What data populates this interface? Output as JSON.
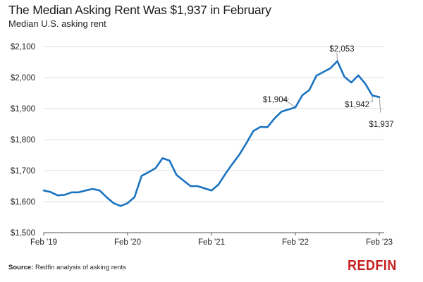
{
  "header": {
    "title": "The Median Asking Rent Was $1,937 in February",
    "subtitle": "Median U.S. asking rent"
  },
  "footer": {
    "source_label": "Source:",
    "source_text": "Redfin analysis of asking rents",
    "logo": "REDFIN"
  },
  "colors": {
    "line": "#1a73c1",
    "grid": "#dddddd",
    "axis": "#555555",
    "leader": "#999999",
    "logo": "#c82021"
  },
  "chart_data": {
    "type": "line",
    "title": "The Median Asking Rent Was $1,937 in February",
    "subtitle": "Median U.S. asking rent",
    "xlabel": "",
    "ylabel": "",
    "ylim": [
      1500,
      2100
    ],
    "yticks": [
      1500,
      1600,
      1700,
      1800,
      1900,
      2000,
      2100
    ],
    "ytick_labels": [
      "$1,500",
      "$1,600",
      "$1,700",
      "$1,800",
      "$1,900",
      "$2,000",
      "$2,100"
    ],
    "xtick_labels": [
      "Feb '19",
      "Feb '20",
      "Feb '21",
      "Feb '22",
      "Feb '23"
    ],
    "grid": true,
    "legend": null,
    "source": "Redfin analysis of asking rents",
    "series": [
      {
        "name": "Median U.S. asking rent",
        "x": [
          "2019-02",
          "2019-03",
          "2019-04",
          "2019-05",
          "2019-06",
          "2019-07",
          "2019-08",
          "2019-09",
          "2019-10",
          "2019-11",
          "2019-12",
          "2020-01",
          "2020-02",
          "2020-03",
          "2020-04",
          "2020-05",
          "2020-06",
          "2020-07",
          "2020-08",
          "2020-09",
          "2020-10",
          "2020-11",
          "2020-12",
          "2021-01",
          "2021-02",
          "2021-03",
          "2021-04",
          "2021-05",
          "2021-06",
          "2021-07",
          "2021-08",
          "2021-09",
          "2021-10",
          "2021-11",
          "2021-12",
          "2022-01",
          "2022-02",
          "2022-03",
          "2022-04",
          "2022-05",
          "2022-06",
          "2022-07",
          "2022-08",
          "2022-09",
          "2022-10",
          "2022-11",
          "2022-12",
          "2023-01",
          "2023-02"
        ],
        "values": [
          1636,
          1631,
          1620,
          1622,
          1630,
          1630,
          1636,
          1641,
          1636,
          1614,
          1595,
          1586,
          1595,
          1615,
          1683,
          1695,
          1708,
          1740,
          1732,
          1686,
          1668,
          1650,
          1650,
          1643,
          1636,
          1655,
          1690,
          1722,
          1752,
          1789,
          1828,
          1841,
          1840,
          1868,
          1890,
          1897,
          1904,
          1943,
          1960,
          2006,
          2018,
          2030,
          2053,
          2003,
          1984,
          2007,
          1980,
          1942,
          1937
        ]
      }
    ],
    "annotations": [
      {
        "label": "$1,904",
        "x": "2022-02",
        "value": 1904
      },
      {
        "label": "$2,053",
        "x": "2022-08",
        "value": 2053
      },
      {
        "label": "$1,942",
        "x": "2023-01",
        "value": 1942
      },
      {
        "label": "$1,937",
        "x": "2023-02",
        "value": 1937
      }
    ]
  }
}
